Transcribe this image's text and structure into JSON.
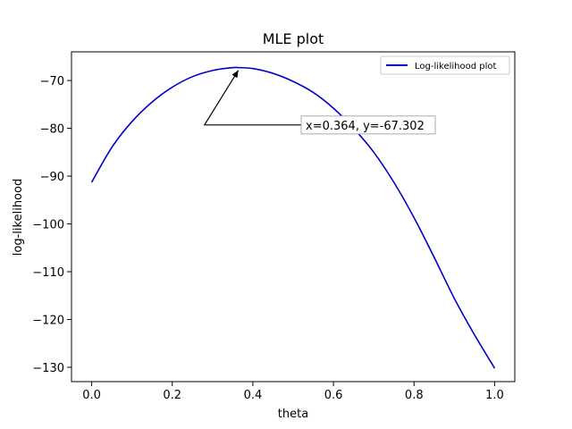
{
  "chart_data": {
    "type": "line",
    "title": "MLE plot",
    "xlabel": "theta",
    "ylabel": "log-likelihood",
    "xlim": [
      -0.05,
      1.05
    ],
    "ylim": [
      -133,
      -64
    ],
    "xticks": [
      0.0,
      0.2,
      0.4,
      0.6,
      0.8,
      1.0
    ],
    "xtick_labels": [
      "0.0",
      "0.2",
      "0.4",
      "0.6",
      "0.8",
      "1.0"
    ],
    "yticks": [
      -70,
      -80,
      -90,
      -100,
      -110,
      -120,
      -130
    ],
    "ytick_labels": [
      "−70",
      "−80",
      "−90",
      "−100",
      "−110",
      "−120",
      "−130"
    ],
    "grid": false,
    "legend_placement": "upper-right",
    "series": [
      {
        "name": "Log-likelihood plot",
        "color": "#0000cc",
        "x": [
          0.0,
          0.05,
          0.1,
          0.15,
          0.2,
          0.25,
          0.3,
          0.35,
          0.364,
          0.4,
          0.45,
          0.5,
          0.55,
          0.6,
          0.65,
          0.7,
          0.75,
          0.8,
          0.85,
          0.9,
          0.95,
          1.0
        ],
        "y": [
          -91.3,
          -84.0,
          -78.6,
          -74.5,
          -71.4,
          -69.2,
          -67.9,
          -67.3,
          -67.302,
          -67.5,
          -68.5,
          -70.2,
          -72.5,
          -75.8,
          -80.0,
          -85.0,
          -91.3,
          -98.7,
          -107.0,
          -115.6,
          -123.2,
          -130.2
        ]
      }
    ],
    "annotation": {
      "text": "x=0.364, y=-67.302",
      "point": [
        0.364,
        -67.302
      ],
      "text_position": [
        0.52,
        -79.3
      ],
      "elbow": [
        0.28,
        -79.3
      ]
    }
  }
}
